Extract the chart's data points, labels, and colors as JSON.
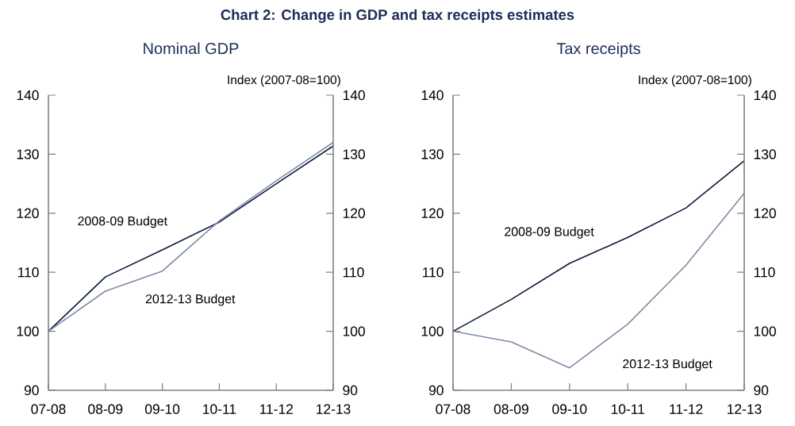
{
  "chart_data": [
    {
      "type": "line",
      "title": "Nominal GDP",
      "ylabel": "Index (2007-08=100)",
      "annotations": [
        "Chart 2: Change in GDP and tax receipts estimates"
      ],
      "categories": [
        "07-08",
        "08-09",
        "09-10",
        "10-11",
        "11-12",
        "12-13"
      ],
      "series": [
        {
          "name": "2008-09 Budget",
          "color": "#0b1a3c",
          "values": [
            100,
            109.2,
            113.8,
            118.5,
            125.0,
            131.4
          ]
        },
        {
          "name": "2012-13 Budget",
          "color": "#7f8ca6",
          "values": [
            100,
            106.8,
            110.2,
            118.7,
            125.5,
            132.0
          ]
        }
      ],
      "ylim": [
        90,
        140
      ],
      "yticks": [
        90,
        100,
        110,
        120,
        130,
        140
      ],
      "y2lim": [
        90,
        140
      ],
      "y2ticks": [
        90,
        100,
        110,
        120,
        130,
        140
      ],
      "grid": false,
      "legend": false,
      "marker": "none",
      "line_style": "solid"
    },
    {
      "type": "line",
      "title": "Tax receipts",
      "ylabel": "Index (2007-08=100)",
      "categories": [
        "07-08",
        "08-09",
        "09-10",
        "10-11",
        "11-12",
        "12-13"
      ],
      "series": [
        {
          "name": "2008-09 Budget",
          "color": "#0b1a3c",
          "values": [
            100,
            105.4,
            111.5,
            115.9,
            120.9,
            128.9
          ]
        },
        {
          "name": "2012-13 Budget",
          "color": "#7f8ca6",
          "values": [
            100,
            98.2,
            93.8,
            101.2,
            111.2,
            123.4
          ]
        }
      ],
      "ylim": [
        90,
        140
      ],
      "yticks": [
        90,
        100,
        110,
        120,
        130,
        140
      ],
      "y2lim": [
        90,
        140
      ],
      "y2ticks": [
        90,
        100,
        110,
        120,
        130,
        140
      ],
      "grid": false,
      "legend": false,
      "marker": "none",
      "line_style": "solid"
    }
  ]
}
